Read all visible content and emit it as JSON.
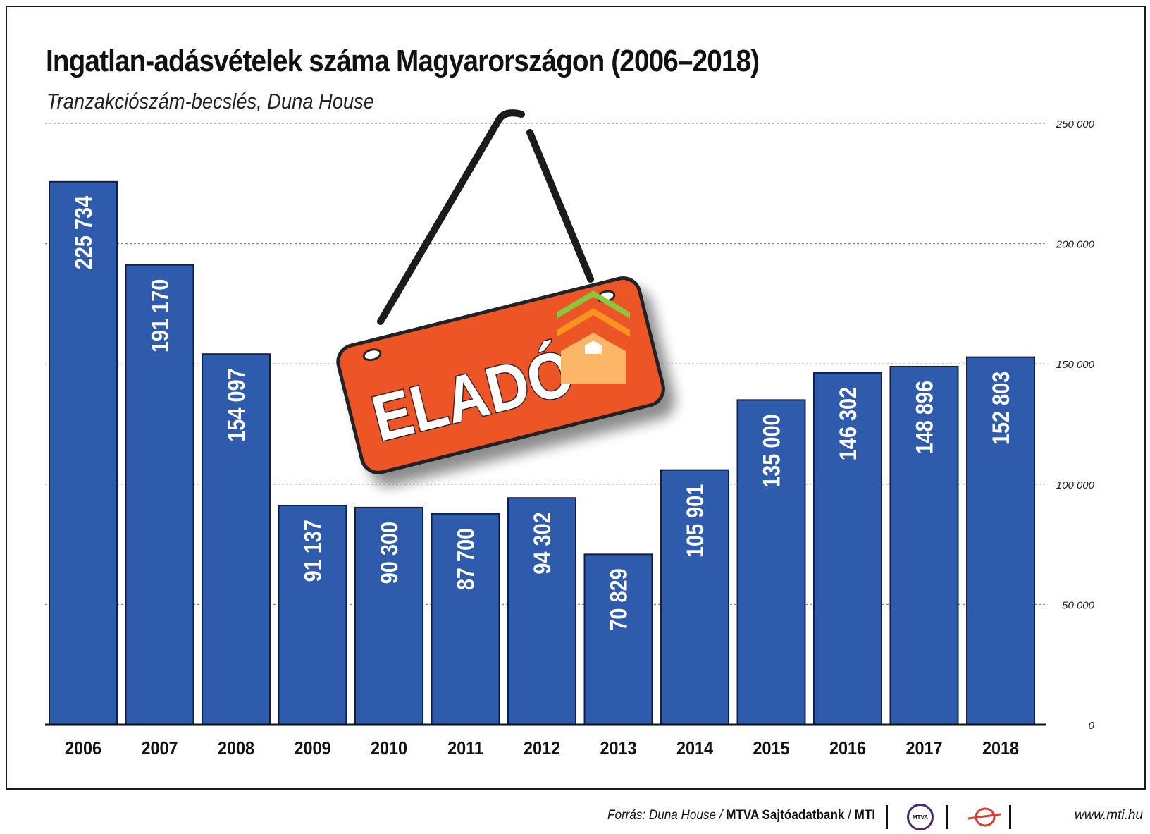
{
  "title": "Ingatlan-adásvételek száma Magyarországon (2006–2018)",
  "subtitle": "Tranzakciószám-becslés, Duna House",
  "sign": {
    "label": "ELADÓ"
  },
  "colors": {
    "bar": "#2e5bab",
    "bar_edge": "#0f1f45",
    "sign": "#ee5425",
    "house_roof_green": "#8cc63f",
    "house_roof_orange": "#f7931e",
    "house_body": "#fbb667"
  },
  "chart_data": {
    "type": "bar",
    "categories": [
      "2006",
      "2007",
      "2008",
      "2009",
      "2010",
      "2011",
      "2012",
      "2013",
      "2014",
      "2015",
      "2016",
      "2017",
      "2018"
    ],
    "values": [
      225734,
      191170,
      154097,
      91137,
      90300,
      87700,
      94302,
      70829,
      105901,
      135000,
      146302,
      148896,
      152803
    ],
    "value_labels": [
      "225 734",
      "191 170",
      "154 097",
      "91 137",
      "90 300",
      "87 700",
      "94 302",
      "70 829",
      "105 901",
      "135 000",
      "146 302",
      "148 896",
      "152 803"
    ],
    "ylim": [
      0,
      250000
    ],
    "yticks": [
      0,
      50000,
      100000,
      150000,
      200000,
      250000
    ],
    "ytick_labels": [
      "0",
      "50 000",
      "100 000",
      "150 000",
      "200 000",
      "250 000"
    ],
    "grid": true,
    "y_axis_side": "right"
  },
  "footer": {
    "source_prefix": "Forrás: Duna House / ",
    "source_org": "MTVA Sajtóadatbank",
    "source_sep": " / ",
    "source_mti": "MTI",
    "mtva_logo": "MTVA",
    "website": "www.mti.hu"
  }
}
